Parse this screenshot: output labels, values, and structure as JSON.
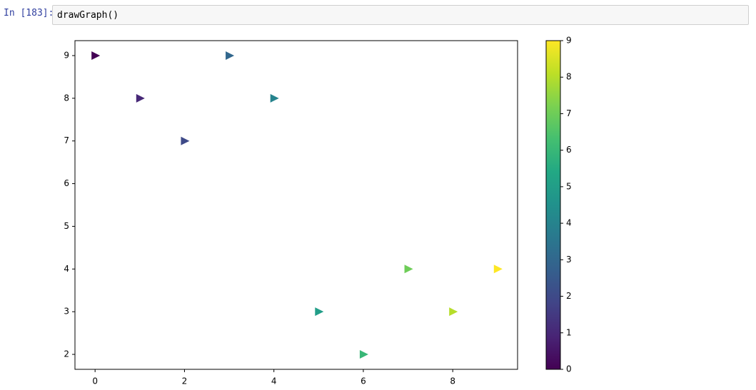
{
  "cell": {
    "prompt": "In [183]:",
    "code": "drawGraph()"
  },
  "chart_data": {
    "type": "scatter",
    "marker": "triangle-right",
    "colormap": "viridis",
    "x": [
      0,
      1,
      2,
      3,
      4,
      5,
      6,
      7,
      8,
      9
    ],
    "y": [
      9,
      8,
      7,
      9,
      8,
      3,
      2,
      4,
      3,
      4
    ],
    "color_values": [
      0,
      1,
      2,
      3,
      4,
      5,
      6,
      7,
      8,
      9
    ],
    "xlim": [
      -0.45,
      9.45
    ],
    "ylim": [
      1.65,
      9.35
    ],
    "xticks": [
      0,
      2,
      4,
      6,
      8
    ],
    "yticks": [
      2,
      3,
      4,
      5,
      6,
      7,
      8,
      9
    ],
    "colorbar": {
      "lim": [
        0,
        9
      ],
      "ticks": [
        0,
        1,
        2,
        3,
        4,
        5,
        6,
        7,
        8,
        9
      ]
    }
  }
}
